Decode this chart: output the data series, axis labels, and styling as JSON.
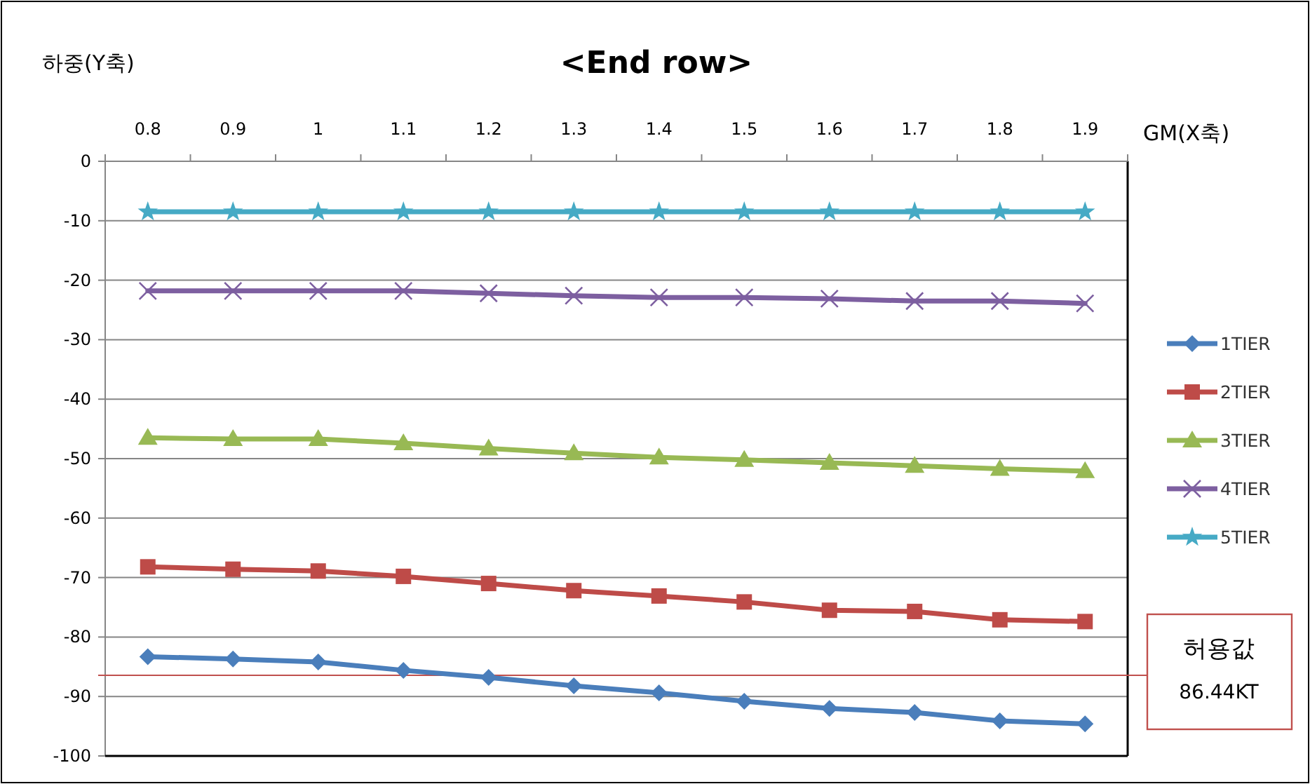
{
  "chart_data": {
    "type": "line",
    "title": "<End row>",
    "ylabel": "하중(Y축)",
    "xlabel": "GM(X축)",
    "categories": [
      "0.8",
      "0.9",
      "1",
      "1.1",
      "1.2",
      "1.3",
      "1.4",
      "1.5",
      "1.6",
      "1.7",
      "1.8",
      "1.9"
    ],
    "series": [
      {
        "name": "1TIER",
        "color": "#4a7ebb",
        "marker": "diamond",
        "values": [
          -83.3,
          -83.7,
          -84.2,
          -85.6,
          -86.8,
          -88.2,
          -89.4,
          -90.8,
          -92.0,
          -92.7,
          -94.1,
          -94.6
        ]
      },
      {
        "name": "2TIER",
        "color": "#be4b48",
        "marker": "square",
        "values": [
          -68.2,
          -68.6,
          -68.9,
          -69.8,
          -71.0,
          -72.2,
          -73.1,
          -74.1,
          -75.5,
          -75.7,
          -77.1,
          -77.4
        ]
      },
      {
        "name": "3TIER",
        "color": "#98b954",
        "marker": "triangle",
        "values": [
          -46.5,
          -46.7,
          -46.7,
          -47.4,
          -48.3,
          -49.1,
          -49.8,
          -50.2,
          -50.7,
          -51.2,
          -51.7,
          -52.1
        ]
      },
      {
        "name": "4TIER",
        "color": "#7d5fa0",
        "marker": "cross",
        "values": [
          -21.8,
          -21.8,
          -21.8,
          -21.8,
          -22.2,
          -22.6,
          -22.9,
          -22.9,
          -23.1,
          -23.5,
          -23.5,
          -23.9
        ]
      },
      {
        "name": "5TIER",
        "color": "#46aac5",
        "marker": "star",
        "values": [
          -8.5,
          -8.5,
          -8.5,
          -8.5,
          -8.5,
          -8.5,
          -8.5,
          -8.5,
          -8.5,
          -8.5,
          -8.5,
          -8.5
        ]
      }
    ],
    "ylim": [
      -100,
      0
    ],
    "yticks": [
      0,
      -10,
      -20,
      -30,
      -40,
      -50,
      -60,
      -70,
      -80,
      -90,
      -100
    ],
    "ref_lines": [
      {
        "axis": "y",
        "value": -86.44,
        "label": "허용값\n86.44KT",
        "color": "#c0504d"
      }
    ],
    "grid": "y",
    "legend": "right"
  }
}
